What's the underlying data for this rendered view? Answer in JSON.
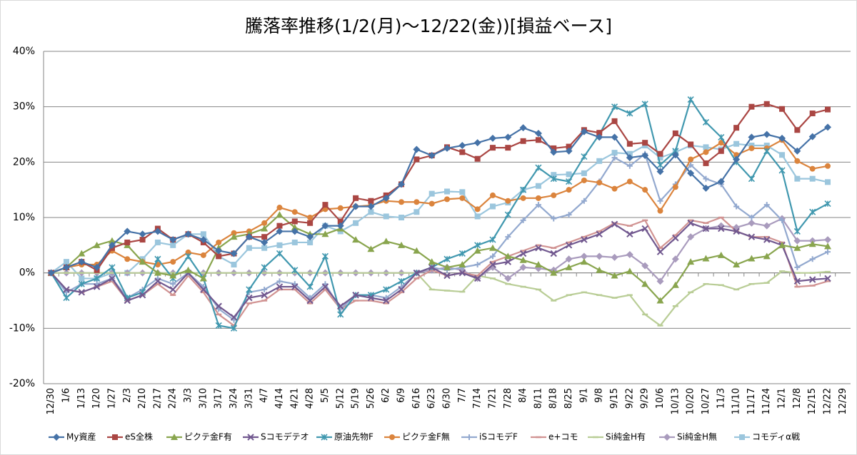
{
  "chart_data": {
    "type": "line",
    "title": "騰落率推移(1/2(月)～12/22(金))[損益ベース]",
    "categories": [
      "12/30",
      "1/6",
      "1/13",
      "1/20",
      "1/27",
      "2/3",
      "2/10",
      "2/17",
      "2/24",
      "3/3",
      "3/10",
      "3/17",
      "3/24",
      "3/31",
      "4/7",
      "4/14",
      "4/21",
      "4/28",
      "5/5",
      "5/12",
      "5/19",
      "5/26",
      "6/2",
      "6/9",
      "6/16",
      "6/23",
      "6/30",
      "7/7",
      "7/14",
      "7/21",
      "7/28",
      "8/4",
      "8/11",
      "8/18",
      "8/25",
      "9/1",
      "9/8",
      "9/15",
      "9/22",
      "9/29",
      "10/6",
      "10/13",
      "10/20",
      "10/27",
      "11/3",
      "11/10",
      "11/17",
      "11/24",
      "12/1",
      "12/8",
      "12/15",
      "12/22",
      "12/29"
    ],
    "ylim": [
      -20,
      40
    ],
    "yticks": [
      {
        "value": -20,
        "label": "-20%"
      },
      {
        "value": -10,
        "label": "-10%"
      },
      {
        "value": 0,
        "label": "0%"
      },
      {
        "value": 10,
        "label": "10%"
      },
      {
        "value": 20,
        "label": "20%"
      },
      {
        "value": 30,
        "label": "30%"
      },
      {
        "value": 40,
        "label": "40%"
      }
    ],
    "grid": true,
    "legend": "bottom",
    "series": [
      {
        "name": "My資産",
        "color": "#4572A7",
        "marker": "diamond",
        "values": [
          0,
          1,
          2,
          1,
          5,
          7.5,
          7,
          7.5,
          6,
          7,
          6,
          4,
          3.5,
          6.5,
          5.5,
          7.5,
          7.5,
          6.5,
          8.5,
          8.5,
          12,
          12,
          13.5,
          16,
          22.3,
          21.2,
          22.5,
          23,
          23.5,
          24.3,
          24.5,
          26.2,
          25.2,
          21.8,
          22,
          25.5,
          24.5,
          24.5,
          20.8,
          21.2,
          18.3,
          21.3,
          18,
          15.3,
          16.5,
          20.5,
          24.5,
          25,
          24.3,
          22,
          24.6,
          26.3,
          null
        ]
      },
      {
        "name": "eS全株",
        "color": "#AA4643",
        "marker": "square",
        "values": [
          0,
          1,
          2,
          0.5,
          4.5,
          5.5,
          6,
          8,
          6,
          7,
          5.5,
          3,
          3.5,
          6.5,
          6.5,
          8.5,
          9.3,
          9,
          12.3,
          9.3,
          13.5,
          13,
          14,
          16,
          20.5,
          21.2,
          22.7,
          21.8,
          20.6,
          22.6,
          22.6,
          23.8,
          24,
          22.5,
          22.8,
          25.8,
          25.3,
          27.4,
          23.3,
          23.5,
          21.5,
          25.2,
          23.2,
          19.8,
          22,
          26.2,
          30,
          30.5,
          29.6,
          25.8,
          28.8,
          29.5,
          null
        ]
      },
      {
        "name": "ピクテ金F有",
        "color": "#89A54E",
        "marker": "triangle",
        "values": [
          0,
          1,
          3.5,
          5,
          5.8,
          5,
          2,
          0,
          -0.5,
          0.5,
          -1,
          4.5,
          6.5,
          7,
          8,
          10.5,
          8.2,
          7,
          7,
          8,
          6,
          4.3,
          5.7,
          5,
          4,
          2,
          1,
          1.5,
          4,
          4.5,
          3,
          2.3,
          1.5,
          0,
          1,
          2,
          0.5,
          -0.5,
          0.3,
          -2,
          -5,
          -2.2,
          2,
          2.6,
          3.2,
          1.5,
          2.6,
          3,
          5,
          4.5,
          5.2,
          4.8,
          null
        ]
      },
      {
        "name": "Sコモデテオ",
        "color": "#71588F",
        "marker": "x",
        "values": [
          0,
          -3,
          -3.5,
          -2.5,
          -1,
          -5,
          -4,
          -1.5,
          -3,
          0,
          -3,
          -6,
          -8,
          -4.5,
          -4,
          -2.5,
          -2.5,
          -5,
          -2.5,
          -6,
          -4,
          -4.5,
          -5,
          -3,
          0,
          1,
          -0.5,
          0,
          -1,
          1.5,
          2,
          3.5,
          4.5,
          3.5,
          5,
          6,
          7,
          8.8,
          7,
          8,
          3.8,
          6.3,
          9,
          8,
          8,
          7.5,
          6.5,
          6,
          5,
          -1.5,
          -1.2,
          -1,
          null
        ]
      },
      {
        "name": "原油先物F",
        "color": "#4198AF",
        "marker": "star",
        "values": [
          0,
          -4.5,
          -2,
          -1,
          1,
          -4.5,
          -3.5,
          2.5,
          -1,
          3,
          -1,
          -9.5,
          -10,
          -3,
          1,
          3.5,
          0.5,
          -2.5,
          3,
          -7.5,
          -4,
          -4,
          -3,
          -1.5,
          0,
          1,
          2.5,
          3.5,
          5,
          6,
          10.5,
          15,
          19,
          17,
          16.5,
          21,
          25,
          30,
          28.8,
          30.5,
          19.5,
          22,
          31.3,
          27.2,
          24.5,
          20,
          17,
          22,
          18.5,
          7.5,
          11,
          12.5,
          null
        ]
      },
      {
        "name": "ピクテ金F無",
        "color": "#DB843D",
        "marker": "circle",
        "values": [
          0,
          1,
          1.5,
          1.5,
          4,
          2.5,
          2,
          1.5,
          2,
          3.7,
          3.2,
          5.5,
          7.2,
          7.5,
          9,
          11.8,
          11,
          10,
          11.5,
          11.7,
          12,
          12.2,
          13,
          12.8,
          12.8,
          12.5,
          13.3,
          13.5,
          11.5,
          14,
          13,
          13.5,
          13.5,
          14,
          15,
          16.7,
          16.3,
          15.2,
          16.5,
          15,
          11.2,
          15.5,
          20.5,
          21.8,
          23.5,
          21.3,
          22.5,
          22.5,
          24,
          20.2,
          18.8,
          19.3,
          null
        ]
      },
      {
        "name": "iSコモデF",
        "color": "#93A9CF",
        "marker": "plus",
        "values": [
          0,
          -3.5,
          -2,
          -2,
          -1,
          -4.5,
          -3,
          -1,
          -2,
          0,
          -2.5,
          -6.5,
          -8.5,
          -3.5,
          -3,
          -1.5,
          -2,
          -4.5,
          -2,
          -6.5,
          -4,
          -4,
          -4.5,
          -2.5,
          0,
          1,
          0.5,
          1,
          1.5,
          3,
          6.5,
          9.5,
          12.3,
          9.8,
          10.5,
          13,
          16.5,
          20.8,
          19.3,
          21.5,
          13,
          16,
          19.5,
          17,
          16,
          12,
          10,
          12.3,
          9.5,
          1,
          2.5,
          3.8,
          null
        ]
      },
      {
        "name": "e+コモ",
        "color": "#D19392",
        "marker": "dash",
        "values": [
          0,
          -3,
          -3.5,
          -2.5,
          -1.5,
          -5,
          -4,
          -2,
          -4,
          -0.5,
          -3.5,
          -7.5,
          -9.5,
          -5.5,
          -5,
          -3,
          -3,
          -5.5,
          -3,
          -6.5,
          -5,
          -5,
          -5.5,
          -3.5,
          -1,
          0.5,
          -0.5,
          0,
          -0.5,
          2,
          3,
          4,
          5,
          4.5,
          5.5,
          6.5,
          7.5,
          9,
          8.5,
          9.5,
          4.5,
          6.8,
          9.5,
          9,
          10,
          7.5,
          6.5,
          6.5,
          5.5,
          -2.5,
          -2.3,
          -1.5,
          null
        ]
      },
      {
        "name": "Si純金H有",
        "color": "#B9CD96",
        "marker": "dash",
        "values": [
          0,
          0,
          0,
          0,
          0,
          0,
          0,
          0,
          0,
          0,
          0,
          0,
          0,
          0,
          0,
          0,
          0,
          0,
          0,
          0,
          0,
          0,
          0,
          0,
          0,
          -3,
          -3.2,
          -3.4,
          -0.5,
          -1,
          -2,
          -2.5,
          -3,
          -5,
          -4,
          -3.5,
          -4,
          -4.5,
          -4,
          -7.5,
          -9.5,
          -6,
          -3.5,
          -2,
          -2.2,
          -3,
          -2,
          -1.8,
          0.3,
          0,
          0,
          0.2,
          null
        ]
      },
      {
        "name": "Si純金H無",
        "color": "#A99BBD",
        "marker": "diamond",
        "values": [
          0,
          0,
          0,
          0,
          0,
          0,
          0,
          0,
          0,
          0,
          0,
          0,
          0,
          0,
          0,
          0,
          0,
          0,
          0,
          0,
          0,
          0,
          0,
          0,
          0,
          0.5,
          1,
          0.5,
          -1,
          1,
          -1,
          1,
          0.8,
          0.5,
          2.5,
          3,
          3,
          2.8,
          3.3,
          1.3,
          -1.5,
          2.5,
          6.5,
          8,
          8.5,
          8.2,
          9,
          8.5,
          9.8,
          5.8,
          5.8,
          6,
          null
        ]
      },
      {
        "name": "コモディα戦",
        "color": "#9BC6DD",
        "marker": "square",
        "values": [
          0,
          2,
          -1,
          -1,
          0,
          0,
          2.5,
          5.5,
          5,
          7,
          7,
          3,
          1.5,
          4.5,
          4.5,
          5,
          5.5,
          5.5,
          8.5,
          7.5,
          9,
          11,
          10.2,
          10,
          11,
          14.3,
          14.7,
          14.6,
          10.2,
          12,
          12.7,
          15,
          15.7,
          17.7,
          17.8,
          18,
          20.2,
          21.7,
          21.5,
          23,
          20.8,
          21.8,
          23,
          22.7,
          22.3,
          23.3,
          23,
          23,
          21.3,
          17,
          17,
          16.4,
          null
        ]
      }
    ]
  }
}
